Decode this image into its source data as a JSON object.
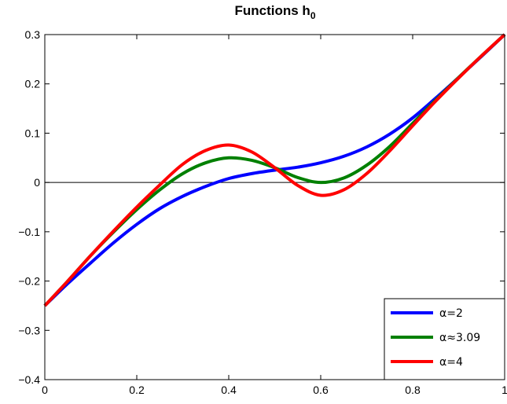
{
  "chart_data": {
    "type": "line",
    "title": "Functions h",
    "title_subscript": "0",
    "xlabel": "",
    "ylabel": "",
    "xlim": [
      0,
      1
    ],
    "ylim": [
      -0.4,
      0.3
    ],
    "xticks": [
      0,
      0.2,
      0.4,
      0.6,
      0.8,
      1
    ],
    "yticks": [
      -0.4,
      -0.3,
      -0.2,
      -0.1,
      0,
      0.1,
      0.2,
      0.3
    ],
    "xtick_labels": [
      "0",
      "0.2",
      "0.4",
      "0.6",
      "0.8",
      "1"
    ],
    "ytick_labels": [
      "−0.4",
      "−0.3",
      "−0.2",
      "−0.1",
      "0",
      "0.1",
      "0.2",
      "0.3"
    ],
    "grid": false,
    "zero_line": true,
    "legend_position": "bottom-right",
    "x": [
      0,
      0.05,
      0.1,
      0.15,
      0.2,
      0.25,
      0.3,
      0.35,
      0.4,
      0.45,
      0.5,
      0.55,
      0.6,
      0.65,
      0.7,
      0.75,
      0.8,
      0.85,
      0.9,
      0.95,
      1
    ],
    "series": [
      {
        "name": "α=2",
        "color": "#0000ff",
        "values": [
          -0.25,
          -0.205,
          -0.163,
          -0.122,
          -0.085,
          -0.053,
          -0.028,
          -0.008,
          0.008,
          0.018,
          0.025,
          0.031,
          0.04,
          0.053,
          0.072,
          0.098,
          0.131,
          0.171,
          0.213,
          0.256,
          0.3
        ]
      },
      {
        "name": "α≈3.09",
        "color": "#008000",
        "values": [
          -0.25,
          -0.2,
          -0.148,
          -0.1,
          -0.055,
          -0.015,
          0.018,
          0.04,
          0.05,
          0.045,
          0.03,
          0.01,
          0.0,
          0.009,
          0.035,
          0.073,
          0.12,
          0.167,
          0.213,
          0.257,
          0.3
        ]
      },
      {
        "name": "α=4",
        "color": "#ff0000",
        "values": [
          -0.25,
          -0.2,
          -0.148,
          -0.098,
          -0.05,
          -0.005,
          0.037,
          0.065,
          0.076,
          0.062,
          0.03,
          -0.006,
          -0.026,
          -0.015,
          0.018,
          0.064,
          0.115,
          0.165,
          0.212,
          0.257,
          0.3
        ]
      }
    ]
  }
}
